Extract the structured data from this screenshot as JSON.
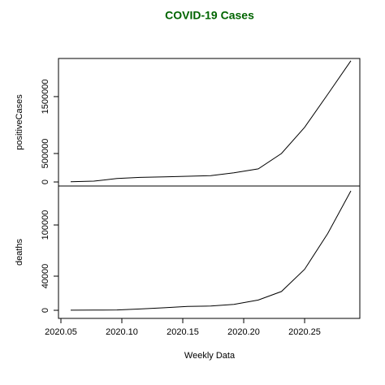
{
  "chart_data": {
    "type": "line",
    "title": "COVID-19 Cases",
    "xlabel": "Weekly Data",
    "color": "#000000",
    "x": [
      2020.058,
      2020.077,
      2020.096,
      2020.115,
      2020.135,
      2020.154,
      2020.173,
      2020.192,
      2020.212,
      2020.231,
      2020.25,
      2020.269,
      2020.288
    ],
    "xlim": [
      2020.048,
      2020.2953
    ],
    "xticks": [
      2020.05,
      {
        "value": 2020.1,
        "label": "2020.10"
      },
      2020.15,
      {
        "value": 2020.2,
        "label": "2020.20"
      },
      2020.25
    ],
    "panels": [
      {
        "ylabel": "positiveCases",
        "values": [
          5000,
          15000,
          60000,
          80000,
          90000,
          100000,
          110000,
          160000,
          230000,
          500000,
          960000,
          1540000,
          2130000
        ],
        "ylim": [
          -71000,
          2170000
        ],
        "yticks": [
          0,
          500000,
          1500000
        ]
      },
      {
        "ylabel": "deaths",
        "values": [
          100,
          200,
          400,
          1500,
          3000,
          4500,
          5000,
          7000,
          12000,
          22000,
          48000,
          90000,
          140000
        ],
        "ylim": [
          -9500,
          145700
        ],
        "yticks": [
          0,
          40000,
          100000
        ]
      }
    ]
  }
}
